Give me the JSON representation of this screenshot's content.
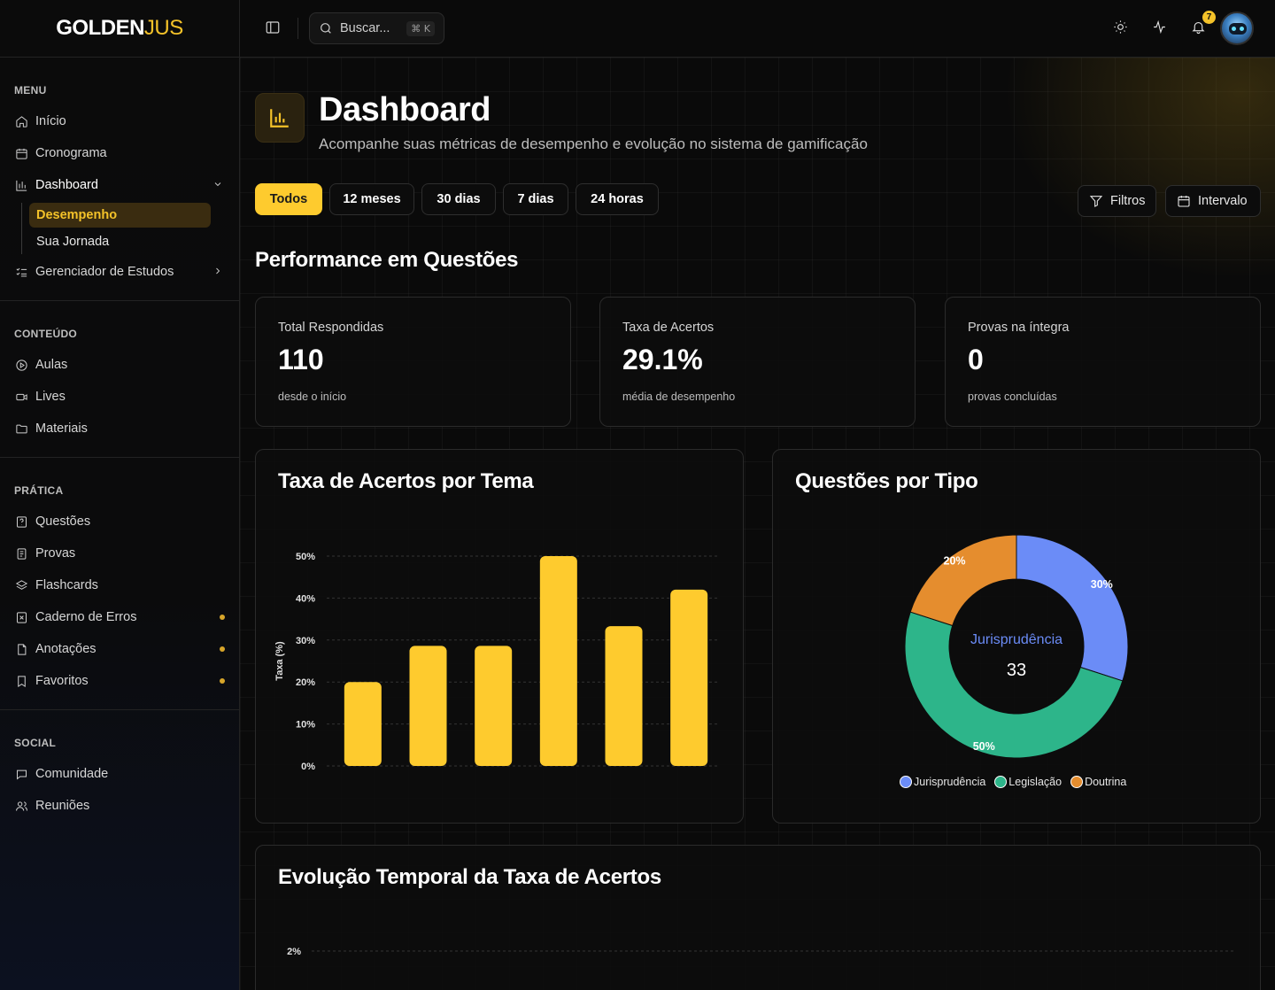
{
  "app": {
    "logo_main": "GOLDEN",
    "logo_accent": "JUS"
  },
  "search": {
    "placeholder": "Buscar...",
    "shortcut": "⌘ K"
  },
  "notifications": {
    "count": "7"
  },
  "sidebar": {
    "sections": [
      {
        "title": "MENU"
      },
      {
        "title": "CONTEÚDO"
      },
      {
        "title": "PRÁTICA"
      },
      {
        "title": "SOCIAL"
      }
    ],
    "menu": [
      {
        "label": "Início",
        "icon": "home-icon"
      },
      {
        "label": "Cronograma",
        "icon": "calendar-icon"
      },
      {
        "label": "Dashboard",
        "icon": "bar-chart-icon"
      },
      {
        "label": "Gerenciador de Estudos",
        "icon": "list-checks-icon"
      }
    ],
    "dashboard_sub": [
      {
        "label": "Desempenho"
      },
      {
        "label": "Sua Jornada"
      }
    ],
    "conteudo": [
      {
        "label": "Aulas",
        "icon": "play-circle-icon"
      },
      {
        "label": "Lives",
        "icon": "video-icon"
      },
      {
        "label": "Materiais",
        "icon": "folder-icon"
      }
    ],
    "pratica": [
      {
        "label": "Questões",
        "icon": "question-icon"
      },
      {
        "label": "Provas",
        "icon": "exam-icon"
      },
      {
        "label": "Flashcards",
        "icon": "layers-icon"
      },
      {
        "label": "Caderno de Erros",
        "icon": "error-book-icon"
      },
      {
        "label": "Anotações",
        "icon": "file-icon"
      },
      {
        "label": "Favoritos",
        "icon": "bookmark-icon"
      }
    ],
    "social": [
      {
        "label": "Comunidade",
        "icon": "chat-icon"
      },
      {
        "label": "Reuniões",
        "icon": "users-icon"
      }
    ]
  },
  "header": {
    "title": "Dashboard",
    "subtitle": "Acompanhe suas métricas de desempenho e evolução no sistema de gamificação"
  },
  "ranges": [
    {
      "label": "Todos",
      "active": true
    },
    {
      "label": "12 meses"
    },
    {
      "label": "30 dias"
    },
    {
      "label": "7 dias"
    },
    {
      "label": "24 horas"
    }
  ],
  "actions": {
    "filters": "Filtros",
    "interval": "Intervalo"
  },
  "performance": {
    "title": "Performance em Questões",
    "stats": [
      {
        "label": "Total Respondidas",
        "value": "110",
        "note": "desde o início"
      },
      {
        "label": "Taxa de Acertos",
        "value": "29.1%",
        "note": "média de desempenho"
      },
      {
        "label": "Provas na íntegra",
        "value": "0",
        "note": "provas concluídas"
      }
    ]
  },
  "charts": {
    "bar_title": "Taxa de Acertos por Tema",
    "donut_title": "Questões por Tipo",
    "donut_center_label": "Jurisprudência",
    "donut_center_value": "33",
    "line_title": "Evolução Temporal da Taxa de Acertos"
  },
  "chart_data": [
    {
      "type": "bar",
      "title": "Taxa de Acertos por Tema",
      "ylabel": "Taxa (%)",
      "yticks": [
        "0%",
        "10%",
        "20%",
        "30%",
        "40%",
        "50%"
      ],
      "ylim": [
        0,
        50
      ],
      "values": [
        20,
        28.6,
        28.6,
        50,
        33.3,
        42
      ],
      "color": "#fecb2e"
    },
    {
      "type": "pie",
      "title": "Questões por Tipo",
      "slices": [
        {
          "name": "Jurisprudência",
          "value": 30,
          "label": "30%",
          "color": "#6b8cf7"
        },
        {
          "name": "Legislação",
          "value": 50,
          "label": "50%",
          "color": "#2db58a"
        },
        {
          "name": "Doutrina",
          "value": 20,
          "label": "20%",
          "color": "#e58d2e"
        }
      ]
    },
    {
      "type": "line",
      "title": "Evolução Temporal da Taxa de Acertos",
      "yticks": [
        "2%"
      ]
    }
  ]
}
